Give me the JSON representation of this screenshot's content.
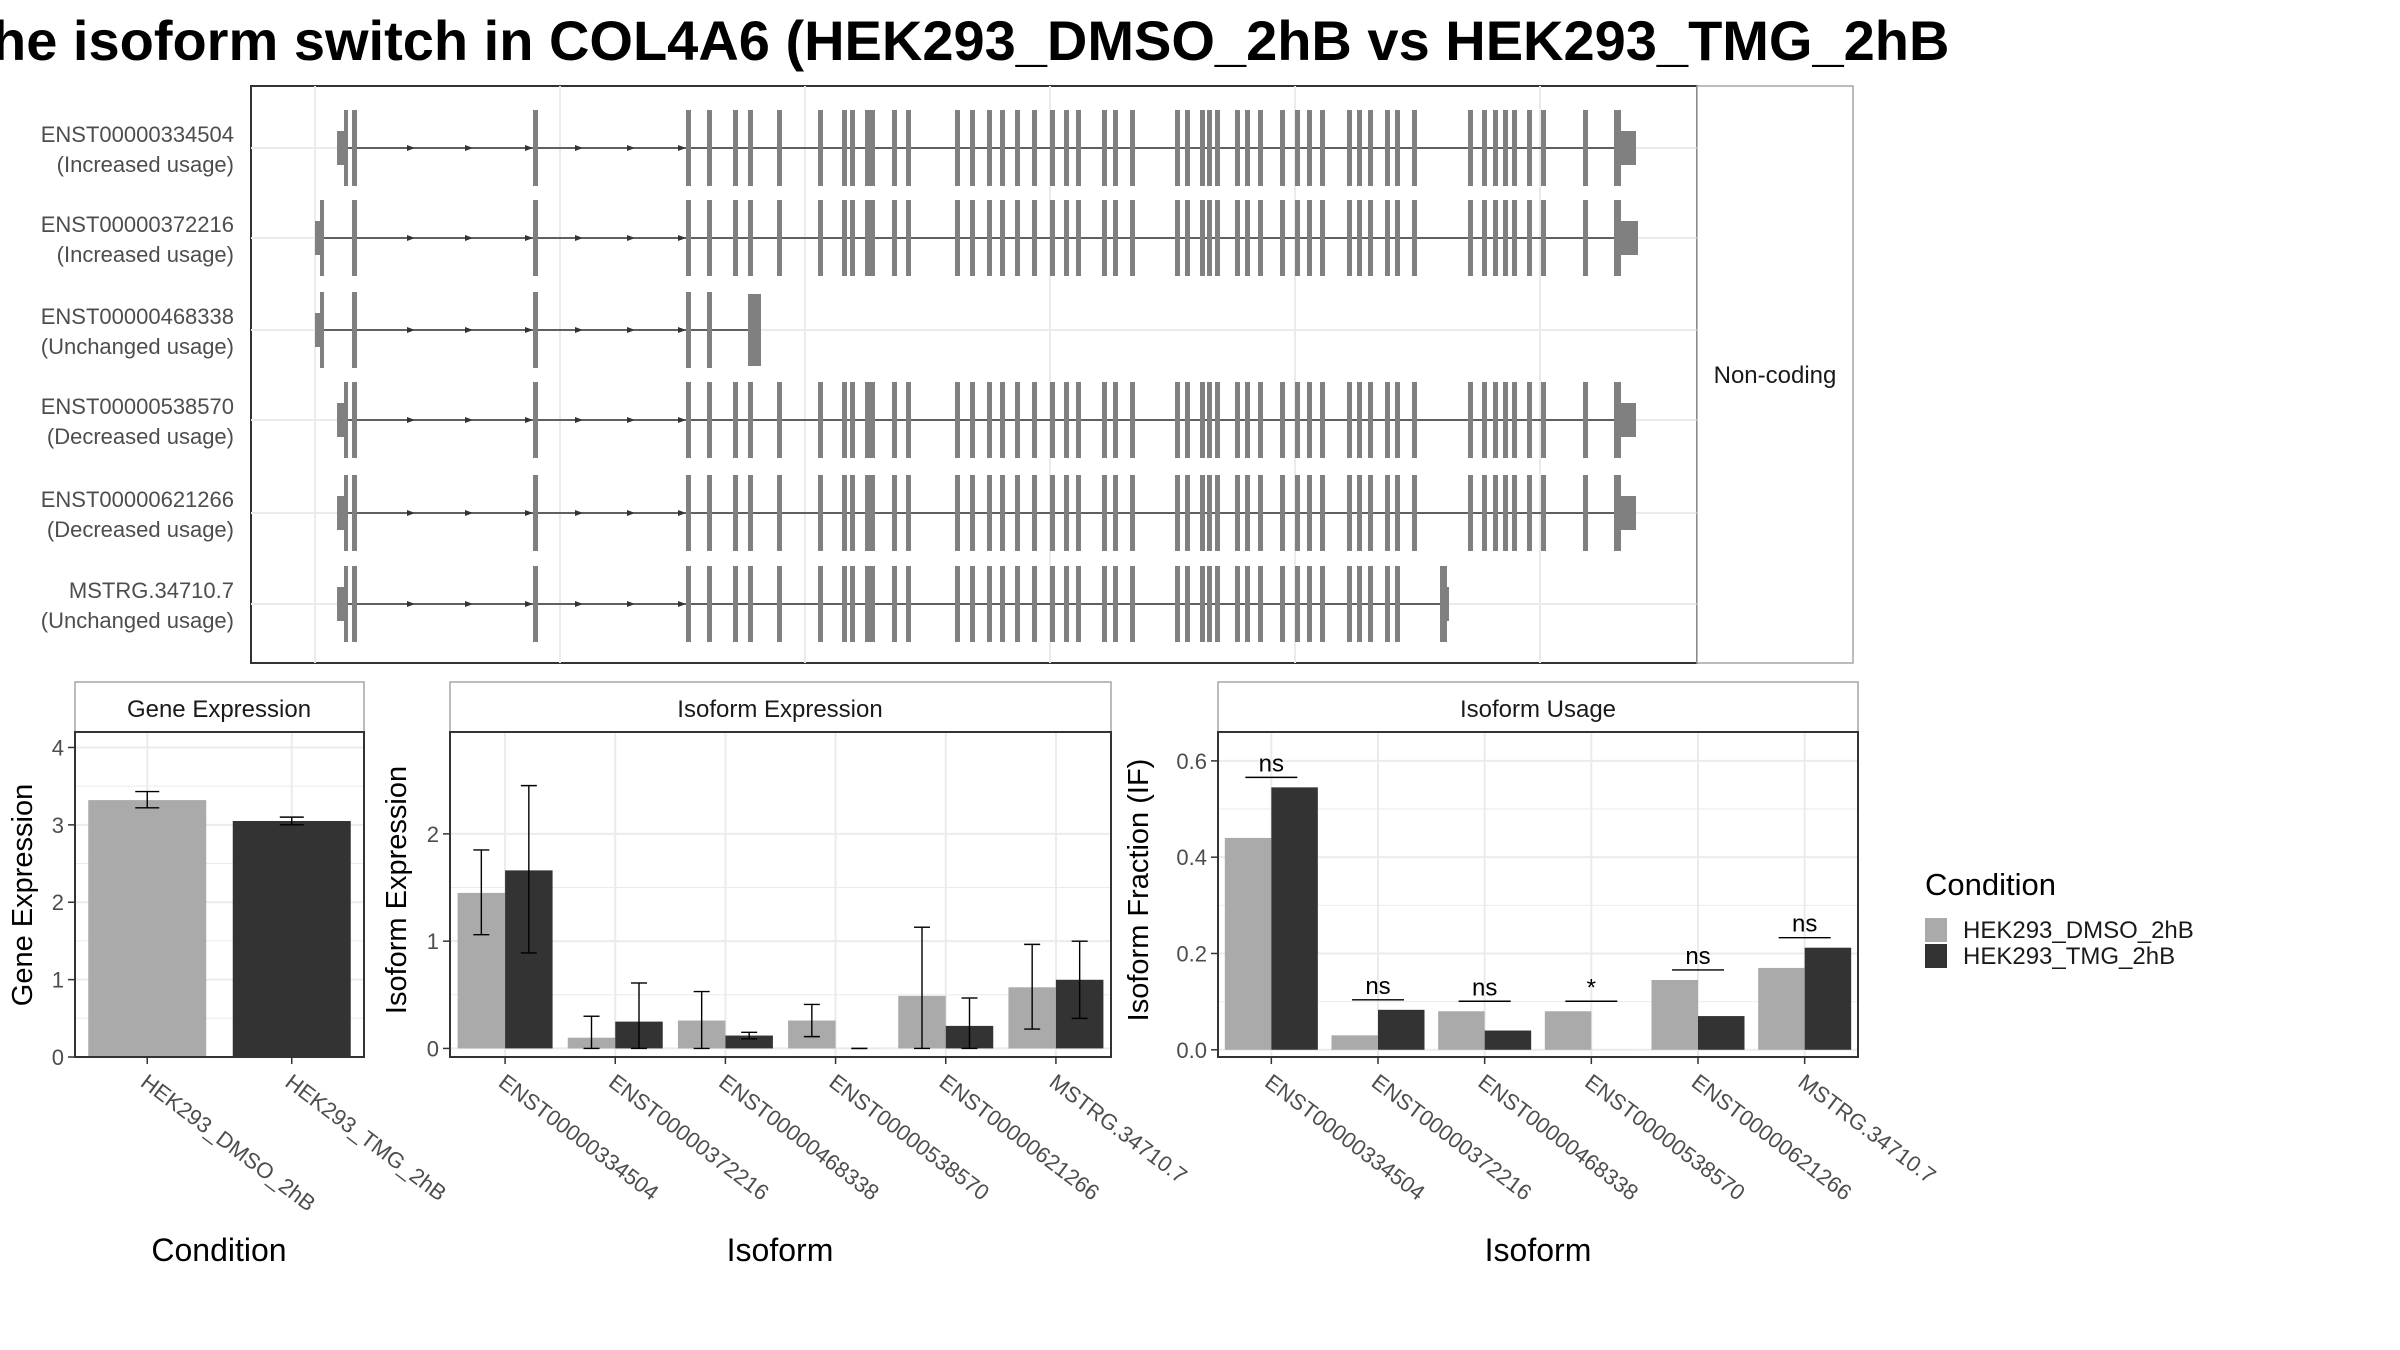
{
  "title": "he isoform switch in COL4A6 (HEK293_DMSO_2hB vs HEK293_TMG_2hB",
  "colors": {
    "dmso": "#aaaaaa",
    "tmg": "#333333",
    "exon": "#808080",
    "grid": "#ebebeb",
    "panel_border": "#333333",
    "strip_border": "#a6a6a6"
  },
  "structure": {
    "strip_label": "Non-coding",
    "isoforms": [
      {
        "id": "ENST00000334504",
        "usage": "(Increased usage)"
      },
      {
        "id": "ENST00000372216",
        "usage": "(Increased usage)"
      },
      {
        "id": "ENST00000468338",
        "usage": "(Unchanged usage)"
      },
      {
        "id": "ENST00000538570",
        "usage": "(Decreased usage)"
      },
      {
        "id": "ENST00000621266",
        "usage": "(Decreased usage)"
      },
      {
        "id": "MSTRG.34710.7",
        "usage": "(Unchanged usage)"
      }
    ]
  },
  "gene_panel": {
    "strip": "Gene Expression",
    "ylabel": "Gene Expression",
    "xlabel": "Condition"
  },
  "iso_expr_panel": {
    "strip": "Isoform Expression",
    "ylabel": "Isoform Expression",
    "xlabel": "Isoform"
  },
  "iso_usage_panel": {
    "strip": "Isoform Usage",
    "ylabel": "Isoform Fraction (IF)",
    "xlabel": "Isoform"
  },
  "legend": {
    "title": "Condition",
    "items": [
      "HEK293_DMSO_2hB",
      "HEK293_TMG_2hB"
    ]
  },
  "chart_data": [
    {
      "type": "bar",
      "title": "Gene Expression",
      "xlabel": "Condition",
      "ylabel": "Gene Expression",
      "categories": [
        "HEK293_DMSO_2hB",
        "HEK293_TMG_2hB"
      ],
      "values": [
        3.32,
        3.05
      ],
      "error": [
        [
          3.22,
          3.43
        ],
        [
          3.0,
          3.1
        ]
      ],
      "ylim": [
        0,
        4.2
      ],
      "yticks": [
        0,
        1,
        2,
        3,
        4
      ]
    },
    {
      "type": "bar",
      "title": "Isoform Expression",
      "xlabel": "Isoform",
      "ylabel": "Isoform Expression",
      "categories": [
        "ENST00000334504",
        "ENST00000372216",
        "ENST00000468338",
        "ENST00000538570",
        "ENST00000621266",
        "MSTRG.34710.7"
      ],
      "series": [
        {
          "name": "HEK293_DMSO_2hB",
          "values": [
            1.45,
            0.1,
            0.26,
            0.26,
            0.49,
            0.57
          ],
          "error": [
            [
              1.06,
              1.85
            ],
            [
              0.0,
              0.3
            ],
            [
              0.0,
              0.53
            ],
            [
              0.11,
              0.41
            ],
            [
              0.0,
              1.13
            ],
            [
              0.18,
              0.97
            ]
          ]
        },
        {
          "name": "HEK293_TMG_2hB",
          "values": [
            1.66,
            0.25,
            0.12,
            0.0,
            0.21,
            0.64
          ],
          "error": [
            [
              0.89,
              2.45
            ],
            [
              0.0,
              0.61
            ],
            [
              0.09,
              0.15
            ],
            [
              0.0,
              0.0
            ],
            [
              0.0,
              0.47
            ],
            [
              0.28,
              1.0
            ]
          ]
        }
      ],
      "ylim": [
        -0.08,
        2.95
      ],
      "yticks": [
        0,
        1,
        2
      ]
    },
    {
      "type": "bar",
      "title": "Isoform Usage",
      "xlabel": "Isoform",
      "ylabel": "Isoform Fraction (IF)",
      "categories": [
        "ENST00000334504",
        "ENST00000372216",
        "ENST00000468338",
        "ENST00000538570",
        "ENST00000621266",
        "MSTRG.34710.7"
      ],
      "series": [
        {
          "name": "HEK293_DMSO_2hB",
          "values": [
            0.44,
            0.03,
            0.08,
            0.08,
            0.145,
            0.17
          ]
        },
        {
          "name": "HEK293_TMG_2hB",
          "values": [
            0.545,
            0.083,
            0.04,
            0.0,
            0.07,
            0.212
          ]
        }
      ],
      "significance": [
        "ns",
        "ns",
        "ns",
        "*",
        "ns",
        "ns"
      ],
      "ylim": [
        -0.015,
        0.66
      ],
      "yticks": [
        0.0,
        0.2,
        0.4,
        0.6
      ]
    }
  ]
}
